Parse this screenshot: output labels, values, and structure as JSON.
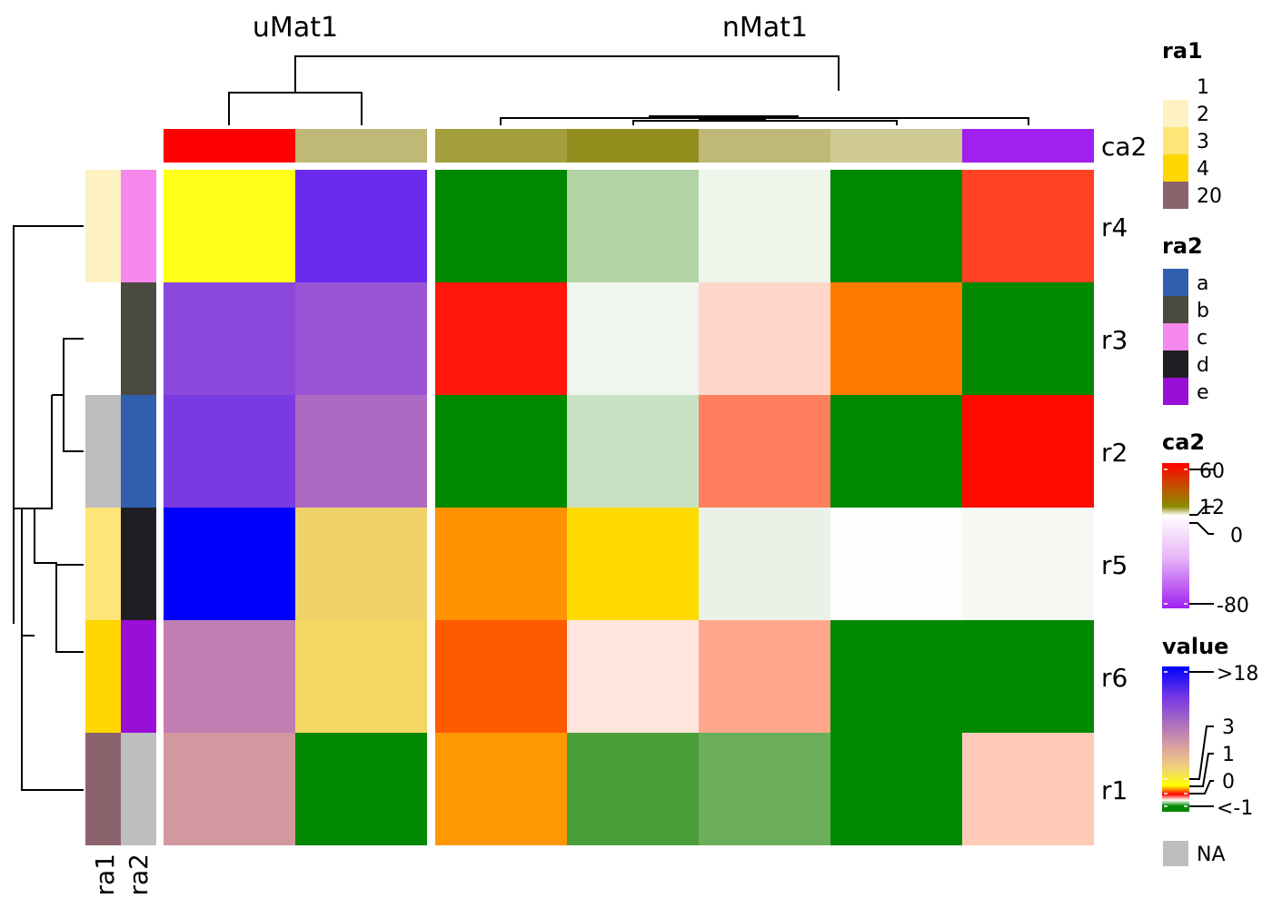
{
  "chart_data": {
    "type": "heatmap",
    "column_groups": [
      {
        "label": "uMat1",
        "columns": 2
      },
      {
        "label": "nMat1",
        "columns": 5
      }
    ],
    "rows": [
      "r4",
      "r3",
      "r2",
      "r5",
      "r6",
      "r1"
    ],
    "cell_colors": [
      [
        "#FFFF17",
        "#6B2BEF",
        "#008800",
        "#B2D3A3",
        "#F0F5EC",
        "#008800",
        "#FF4223"
      ],
      [
        "#8B48DA",
        "#9854D4",
        "#FF180B",
        "#F0F5EE",
        "#FFD7CA",
        "#FF7A00",
        "#008800"
      ],
      [
        "#7A3AE2",
        "#AE69C3",
        "#008800",
        "#C8E1C2",
        "#FF7F5E",
        "#008800",
        "#FF0A00"
      ],
      [
        "#0000FF",
        "#F0D26A",
        "#FF9200",
        "#FFDA00",
        "#EAF2E7",
        "#FDFDFB",
        "#F5F8F3"
      ],
      [
        "#C27DB3",
        "#F2D862",
        "#FF5A00",
        "#FFE5DC",
        "#FFA68C",
        "#008800",
        "#008800"
      ],
      [
        "#D3989F",
        "#008800",
        "#FF9800",
        "#4A9E3A",
        "#6AAE5A",
        "#008800",
        "#FFCBB8"
      ]
    ],
    "column_annotation": {
      "name": "ca2",
      "colors": [
        "#FF0000",
        "#BFB876",
        "#A39F3D",
        "#928F1F",
        "#BFB876",
        "#CFC994",
        "#A020F0"
      ]
    },
    "row_annotations": [
      {
        "name": "ra1",
        "colors": [
          "#FFF2C2",
          "#FFFFFF",
          "#BEBEBE",
          "#FFE477",
          "#FFD700",
          "#8B636C"
        ]
      },
      {
        "name": "ra2",
        "colors": [
          "#F488EC",
          "#4A4A40",
          "#315EAE",
          "#1E1E23",
          "#9A0FD7",
          "#BEBEBE"
        ]
      }
    ],
    "legends": {
      "ra1": {
        "title": "ra1",
        "items": [
          {
            "label": "1",
            "color": "#FFFFFF"
          },
          {
            "label": "2",
            "color": "#FFF2C2"
          },
          {
            "label": "3",
            "color": "#FFE477"
          },
          {
            "label": "4",
            "color": "#FFD700"
          },
          {
            "label": "20",
            "color": "#8B636C"
          }
        ]
      },
      "ra2": {
        "title": "ra2",
        "items": [
          {
            "label": "a",
            "color": "#315EAE"
          },
          {
            "label": "b",
            "color": "#4A4A40"
          },
          {
            "label": "c",
            "color": "#F488EC"
          },
          {
            "label": "d",
            "color": "#1E1E23"
          },
          {
            "label": "e",
            "color": "#9A0FD7"
          }
        ]
      },
      "ca2": {
        "title": "ca2",
        "breaks": [
          60,
          12,
          0,
          -80
        ],
        "labels": [
          "60",
          "12",
          "0",
          "-80"
        ],
        "colors": [
          "#FF0000",
          "#8B8B00",
          "#FFFFFF",
          "#A020F0"
        ]
      },
      "value": {
        "title": "value",
        "labels": [
          ">18",
          "3",
          "1",
          "0",
          "<-1"
        ],
        "colors": [
          "#0000FF",
          "#D8A0A0",
          "#FFFF00",
          "#FF0000",
          "#008800"
        ]
      },
      "na": {
        "label": "NA",
        "color": "#BEBEBE"
      }
    }
  }
}
